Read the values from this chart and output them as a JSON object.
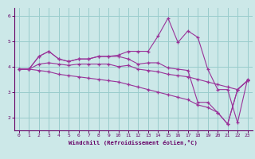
{
  "bg_color": "#cce8e8",
  "line_color": "#993399",
  "grid_color": "#99cccc",
  "axis_color": "#660066",
  "tick_label_color": "#660066",
  "xlabel": "Windchill (Refroidissement éolien,°C)",
  "ylim": [
    1.5,
    6.3
  ],
  "xlim": [
    -0.5,
    23.5
  ],
  "yticks": [
    2,
    3,
    4,
    5,
    6
  ],
  "xticks": [
    0,
    1,
    2,
    3,
    4,
    5,
    6,
    7,
    8,
    9,
    10,
    11,
    12,
    13,
    14,
    15,
    16,
    17,
    18,
    19,
    20,
    21,
    22,
    23
  ],
  "series": [
    [
      3.9,
      3.9,
      4.4,
      4.6,
      4.3,
      4.2,
      4.3,
      4.3,
      4.4,
      4.4,
      4.45,
      4.6,
      4.6,
      4.6,
      5.2,
      5.9,
      4.95,
      5.4,
      5.15,
      3.9,
      3.1,
      3.1,
      1.8,
      3.5
    ],
    [
      3.9,
      3.9,
      4.4,
      4.6,
      4.3,
      4.2,
      4.3,
      4.3,
      4.4,
      4.4,
      4.4,
      4.3,
      4.1,
      4.15,
      4.15,
      3.95,
      3.9,
      3.85,
      2.6,
      2.6,
      2.2,
      1.75,
      3.1,
      3.45
    ],
    [
      3.9,
      3.9,
      4.1,
      4.15,
      4.1,
      4.05,
      4.1,
      4.1,
      4.1,
      4.1,
      4.0,
      4.05,
      3.9,
      3.85,
      3.8,
      3.7,
      3.65,
      3.6,
      3.5,
      3.4,
      3.3,
      3.2,
      3.1,
      3.45
    ],
    [
      3.9,
      3.9,
      3.85,
      3.8,
      3.7,
      3.65,
      3.6,
      3.55,
      3.5,
      3.45,
      3.4,
      3.3,
      3.2,
      3.1,
      3.0,
      2.9,
      2.8,
      2.7,
      2.5,
      2.4,
      2.2,
      1.75,
      3.1,
      3.45
    ]
  ]
}
